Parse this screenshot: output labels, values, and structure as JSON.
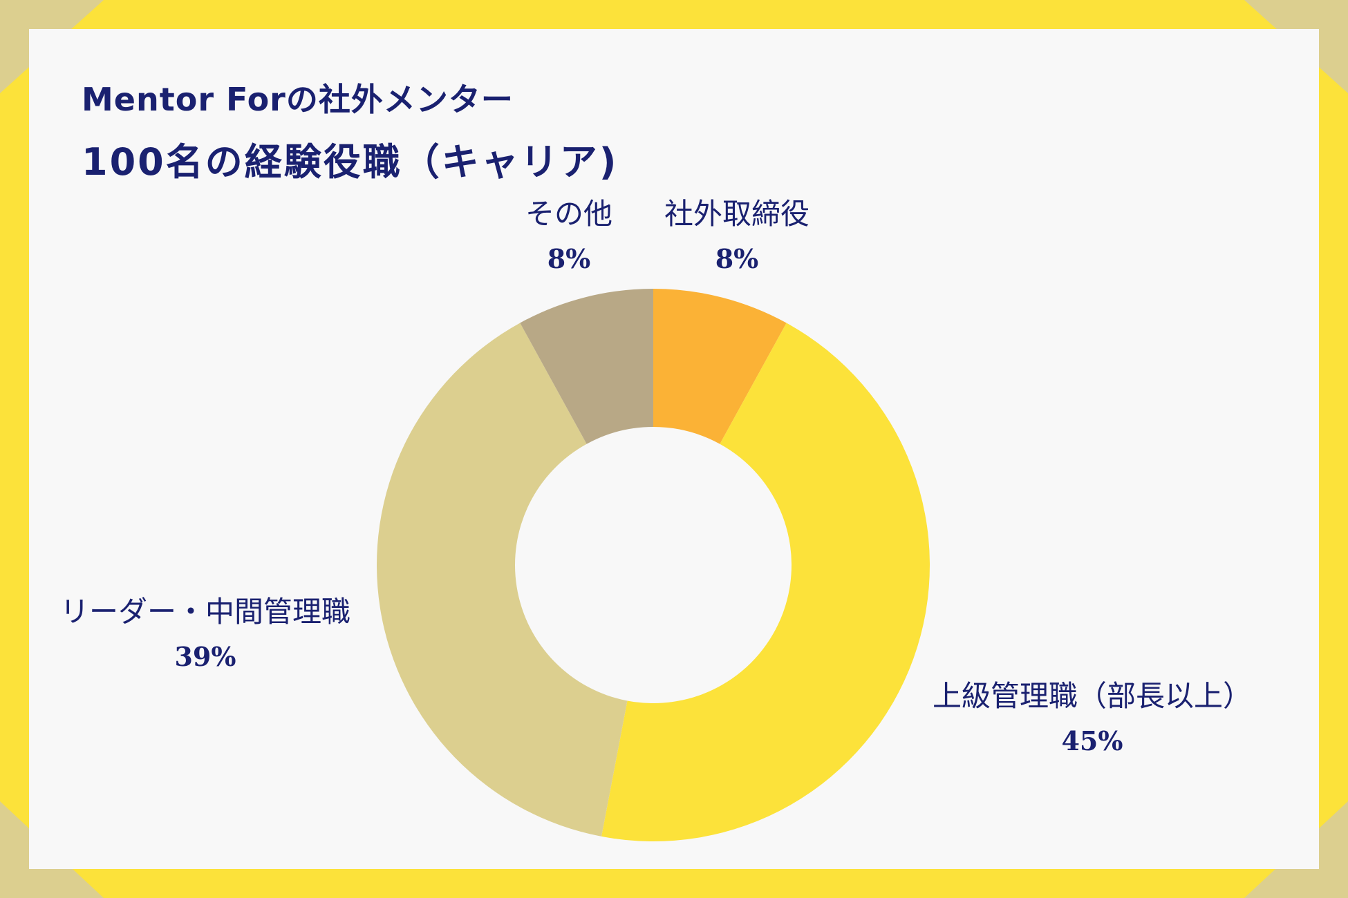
{
  "colors": {
    "frame": "#fce23a",
    "corner": "#dccf8f",
    "panel": "#f8f8f8",
    "text": "#1a2170"
  },
  "title": {
    "line1": "Mentor Forの社外メンター",
    "line2": "100名の経験役職（キャリア)"
  },
  "chart_data": {
    "type": "pie",
    "donut": true,
    "categories": [
      "社外取締役",
      "上級管理職（部長以上）",
      "リーダー・中間管理職",
      "その他"
    ],
    "values": [
      8,
      45,
      39,
      8
    ],
    "labels": [
      "8%",
      "45%",
      "39%",
      "8%"
    ],
    "colors": [
      "#fbb236",
      "#fce23a",
      "#dccf8f",
      "#b8a886"
    ],
    "start_angle_deg": 0,
    "direction": "clockwise"
  }
}
